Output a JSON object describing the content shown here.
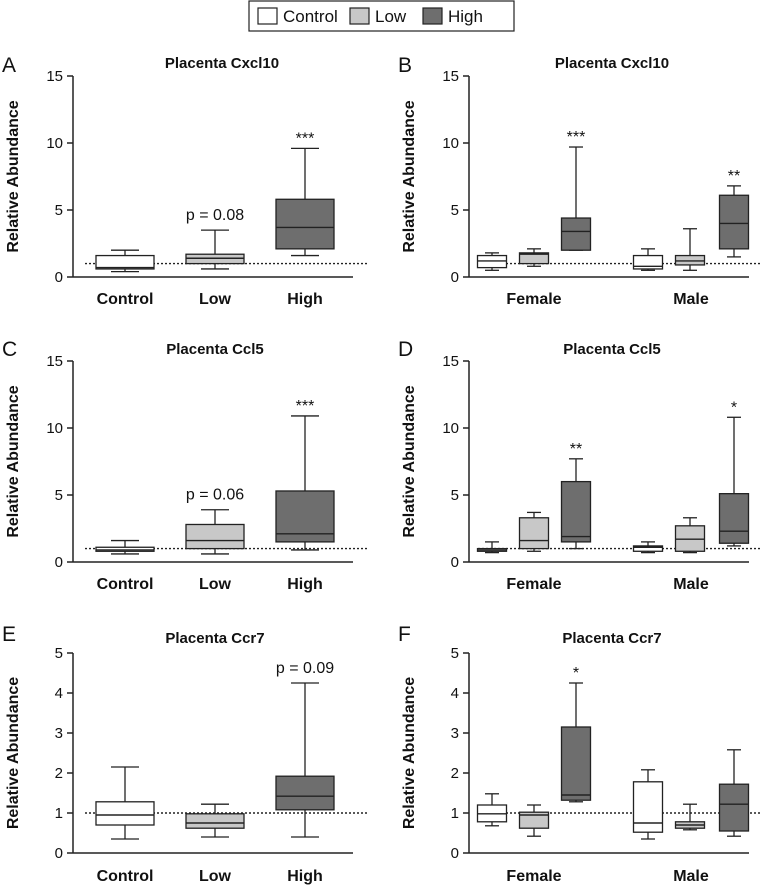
{
  "legend": {
    "entries": [
      {
        "label": "Control",
        "color": "#ffffff"
      },
      {
        "label": "Low",
        "color": "#c8c8c8"
      },
      {
        "label": "High",
        "color": "#6e6e6e"
      }
    ]
  },
  "chart_data": [
    {
      "panel": "A",
      "type": "box",
      "title": "Placenta Cxcl10",
      "ylabel": "Relative Abundance",
      "ylim": [
        0,
        15
      ],
      "yticks": [
        "0",
        "5",
        "10",
        "15"
      ],
      "reference_line": 1,
      "groups": [
        {
          "label": "Control",
          "boxes": [
            {
              "series": "Control",
              "min": 0.4,
              "q1": 0.6,
              "median": 0.7,
              "q3": 1.6,
              "max": 2.0,
              "annotation": ""
            }
          ]
        },
        {
          "label": "Low",
          "boxes": [
            {
              "series": "Low",
              "min": 0.6,
              "q1": 1.0,
              "median": 1.4,
              "q3": 1.7,
              "max": 3.5,
              "annotation": "p = 0.08"
            }
          ]
        },
        {
          "label": "High",
          "boxes": [
            {
              "series": "High",
              "min": 1.6,
              "q1": 2.1,
              "median": 3.7,
              "q3": 5.8,
              "max": 9.6,
              "annotation": "***"
            }
          ]
        }
      ]
    },
    {
      "panel": "B",
      "type": "box",
      "title": "Placenta Cxcl10",
      "ylabel": "Relative Abundance",
      "ylim": [
        0,
        15
      ],
      "yticks": [
        "0",
        "5",
        "10",
        "15"
      ],
      "reference_line": 1,
      "groups": [
        {
          "label": "Female",
          "boxes": [
            {
              "series": "Control",
              "min": 0.5,
              "q1": 0.7,
              "median": 1.2,
              "q3": 1.6,
              "max": 1.8,
              "annotation": ""
            },
            {
              "series": "Low",
              "min": 0.8,
              "q1": 1.0,
              "median": 1.7,
              "q3": 1.8,
              "max": 2.1,
              "annotation": ""
            },
            {
              "series": "High",
              "min": 2.0,
              "q1": 2.0,
              "median": 3.4,
              "q3": 4.4,
              "max": 9.7,
              "annotation": "***"
            }
          ]
        },
        {
          "label": "Male",
          "boxes": [
            {
              "series": "Control",
              "min": 0.5,
              "q1": 0.6,
              "median": 0.8,
              "q3": 1.6,
              "max": 2.1,
              "annotation": ""
            },
            {
              "series": "Low",
              "min": 0.5,
              "q1": 0.9,
              "median": 1.2,
              "q3": 1.6,
              "max": 3.6,
              "annotation": ""
            },
            {
              "series": "High",
              "min": 1.5,
              "q1": 2.1,
              "median": 4.0,
              "q3": 6.1,
              "max": 6.8,
              "annotation": "**"
            }
          ]
        }
      ]
    },
    {
      "panel": "C",
      "type": "box",
      "title": "Placenta Ccl5",
      "ylabel": "Relative Abundance",
      "ylim": [
        0,
        15
      ],
      "yticks": [
        "0",
        "5",
        "10",
        "15"
      ],
      "reference_line": 1,
      "groups": [
        {
          "label": "Control",
          "boxes": [
            {
              "series": "Control",
              "min": 0.6,
              "q1": 0.8,
              "median": 0.9,
              "q3": 1.1,
              "max": 1.6,
              "annotation": ""
            }
          ]
        },
        {
          "label": "Low",
          "boxes": [
            {
              "series": "Low",
              "min": 0.6,
              "q1": 1.0,
              "median": 1.6,
              "q3": 2.8,
              "max": 3.9,
              "annotation": "p = 0.06"
            }
          ]
        },
        {
          "label": "High",
          "boxes": [
            {
              "series": "High",
              "min": 0.9,
              "q1": 1.5,
              "median": 2.1,
              "q3": 5.3,
              "max": 10.9,
              "annotation": "***"
            }
          ]
        }
      ]
    },
    {
      "panel": "D",
      "type": "box",
      "title": "Placenta Ccl5",
      "ylabel": "Relative Abundance",
      "ylim": [
        0,
        15
      ],
      "yticks": [
        "0",
        "5",
        "10",
        "15"
      ],
      "reference_line": 1,
      "groups": [
        {
          "label": "Female",
          "boxes": [
            {
              "series": "Control",
              "min": 0.7,
              "q1": 0.8,
              "median": 0.9,
              "q3": 1.0,
              "max": 1.5,
              "annotation": ""
            },
            {
              "series": "Low",
              "min": 0.8,
              "q1": 1.0,
              "median": 1.6,
              "q3": 3.3,
              "max": 3.7,
              "annotation": ""
            },
            {
              "series": "High",
              "min": 1.0,
              "q1": 1.5,
              "median": 1.9,
              "q3": 6.0,
              "max": 7.7,
              "annotation": "**"
            }
          ]
        },
        {
          "label": "Male",
          "boxes": [
            {
              "series": "Control",
              "min": 0.7,
              "q1": 0.8,
              "median": 1.1,
              "q3": 1.2,
              "max": 1.5,
              "annotation": ""
            },
            {
              "series": "Low",
              "min": 0.7,
              "q1": 0.8,
              "median": 1.7,
              "q3": 2.7,
              "max": 3.3,
              "annotation": ""
            },
            {
              "series": "High",
              "min": 1.2,
              "q1": 1.4,
              "median": 2.3,
              "q3": 5.1,
              "max": 10.8,
              "annotation": "*"
            }
          ]
        }
      ]
    },
    {
      "panel": "E",
      "type": "box",
      "title": "Placenta Ccr7",
      "ylabel": "Relative Abundance",
      "ylim": [
        0,
        5
      ],
      "yticks": [
        "0",
        "1",
        "2",
        "3",
        "4",
        "5"
      ],
      "reference_line": 1,
      "groups": [
        {
          "label": "Control",
          "boxes": [
            {
              "series": "Control",
              "min": 0.35,
              "q1": 0.7,
              "median": 0.95,
              "q3": 1.28,
              "max": 2.15,
              "annotation": ""
            }
          ]
        },
        {
          "label": "Low",
          "boxes": [
            {
              "series": "Low",
              "min": 0.4,
              "q1": 0.62,
              "median": 0.75,
              "q3": 0.98,
              "max": 1.22,
              "annotation": ""
            }
          ]
        },
        {
          "label": "High",
          "boxes": [
            {
              "series": "High",
              "min": 0.4,
              "q1": 1.08,
              "median": 1.42,
              "q3": 1.92,
              "max": 4.25,
              "annotation": "p = 0.09"
            }
          ]
        }
      ]
    },
    {
      "panel": "F",
      "type": "box",
      "title": "Placenta Ccr7",
      "ylabel": "Relative Abundance",
      "ylim": [
        0,
        5
      ],
      "yticks": [
        "0",
        "1",
        "2",
        "3",
        "4",
        "5"
      ],
      "reference_line": 1,
      "groups": [
        {
          "label": "Female",
          "boxes": [
            {
              "series": "Control",
              "min": 0.68,
              "q1": 0.78,
              "median": 0.98,
              "q3": 1.2,
              "max": 1.48,
              "annotation": ""
            },
            {
              "series": "Low",
              "min": 0.42,
              "q1": 0.62,
              "median": 0.95,
              "q3": 1.02,
              "max": 1.2,
              "annotation": ""
            },
            {
              "series": "High",
              "min": 1.28,
              "q1": 1.32,
              "median": 1.45,
              "q3": 3.15,
              "max": 4.25,
              "annotation": "*"
            }
          ]
        },
        {
          "label": "Male",
          "boxes": [
            {
              "series": "Control",
              "min": 0.35,
              "q1": 0.52,
              "median": 0.75,
              "q3": 1.78,
              "max": 2.08,
              "annotation": ""
            },
            {
              "series": "Low",
              "min": 0.58,
              "q1": 0.62,
              "median": 0.7,
              "q3": 0.78,
              "max": 1.22,
              "annotation": ""
            },
            {
              "series": "High",
              "min": 0.42,
              "q1": 0.55,
              "median": 1.22,
              "q3": 1.72,
              "max": 2.58,
              "annotation": ""
            }
          ]
        }
      ]
    }
  ]
}
